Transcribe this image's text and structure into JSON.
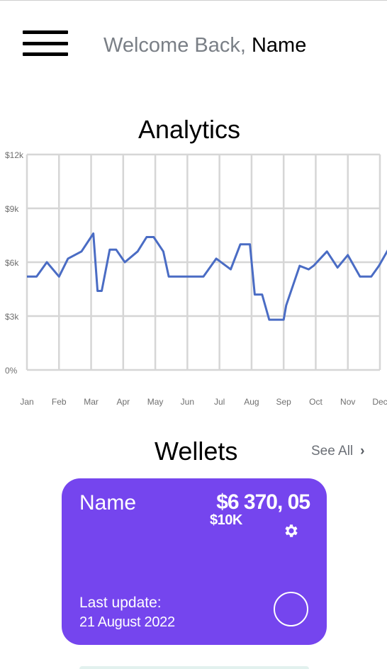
{
  "header": {
    "welcome_prefix": "Welcome Back, ",
    "user_name": "Name",
    "menu_icon": "hamburger-icon"
  },
  "analytics": {
    "title": "Analytics"
  },
  "chart_data": {
    "type": "line",
    "title": "Analytics",
    "xlabel": "",
    "ylabel": "",
    "y_tick_labels": [
      "0%",
      "$3k",
      "$6k",
      "$9k",
      "$12k"
    ],
    "y_ticks": [
      0,
      3,
      6,
      9,
      12
    ],
    "ylim": [
      0,
      12
    ],
    "x_tick_labels": [
      "Jan",
      "Feb",
      "Mar",
      "Apr",
      "May",
      "Jun",
      "Jul",
      "Aug",
      "Sep",
      "Oct",
      "Nov",
      "Dec"
    ],
    "grid": true,
    "line_color": "#4a6cc4",
    "series": [
      {
        "x": [
          0,
          0.3,
          0.62,
          1.0,
          1.28,
          1.7,
          2.07,
          2.2,
          2.33,
          2.58,
          2.78,
          3.05,
          3.45,
          3.73,
          3.95,
          4.25,
          4.42,
          4.75,
          5.0,
          5.5,
          5.9,
          6.35,
          6.65,
          6.95,
          7.1,
          7.33,
          7.55,
          8.0,
          8.08,
          8.5,
          8.78,
          8.93,
          9.35,
          9.68,
          10.0,
          10.38,
          10.73,
          10.97,
          11.32
        ]
      },
      {
        "y": [
          5.2,
          5.2,
          6.0,
          5.2,
          6.2,
          6.6,
          7.6,
          4.4,
          4.4,
          6.7,
          6.7,
          6.0,
          6.6,
          7.4,
          7.4,
          6.6,
          5.2,
          5.2,
          5.2,
          5.2,
          6.2,
          5.6,
          7.0,
          7.0,
          4.2,
          4.2,
          2.8,
          2.8,
          3.6,
          5.8,
          5.6,
          5.8,
          6.6,
          5.7,
          6.4,
          5.2,
          5.2,
          5.8,
          6.9
        ]
      }
    ]
  },
  "wallets": {
    "title": "Wellets",
    "see_all": "See All",
    "chevron_glyph": "›",
    "card": {
      "name": "Name",
      "balance": "$6 370, 05",
      "limit": "$10K",
      "last_update_label": "Last update:",
      "last_update_date": "21 August 2022",
      "color": "#7545ee"
    }
  }
}
